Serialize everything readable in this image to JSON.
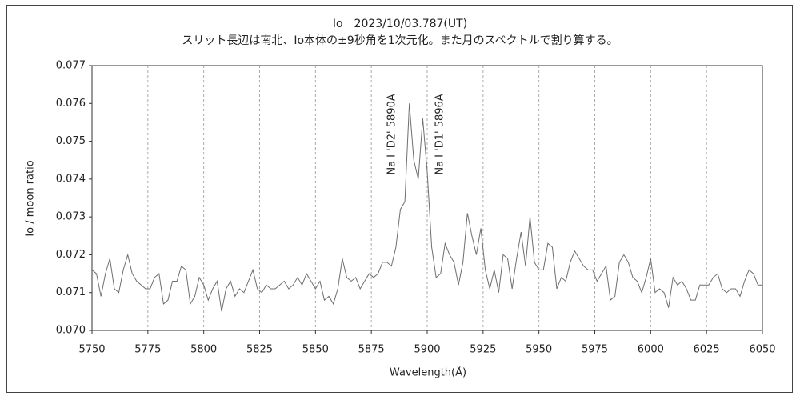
{
  "chart_data": {
    "type": "line",
    "title": "Io　2023/10/03.787(UT)",
    "subtitle": "スリット長辺は南北、Io本体の±9秒角を1次元化。また月のスペクトルで割り算する。",
    "xlabel": "Wavelength(Å)",
    "ylabel": "Io / moon ratio",
    "annotations": [
      "Na I 'D2' 5890A",
      "Na I 'D1' 5896A"
    ],
    "color": "#6e6e6e",
    "xlim": [
      5750,
      6050
    ],
    "xticks": [
      5750,
      5775,
      5800,
      5825,
      5850,
      5875,
      5900,
      5925,
      5950,
      5975,
      6000,
      6025,
      6050
    ],
    "ylim": [
      0.07,
      0.077
    ],
    "yticks": [
      {
        "value": 0.07,
        "label": "0.070"
      },
      0.071,
      0.072,
      0.073,
      0.074,
      0.075,
      0.076,
      0.077
    ],
    "grid": "x",
    "x": [
      5750,
      5752,
      5754,
      5756,
      5758,
      5760,
      5762,
      5764,
      5766,
      5768,
      5770,
      5772,
      5774,
      5776,
      5778,
      5780,
      5782,
      5784,
      5786,
      5788,
      5790,
      5792,
      5794,
      5796,
      5798,
      5800,
      5802,
      5804,
      5806,
      5808,
      5810,
      5812,
      5814,
      5816,
      5818,
      5820,
      5822,
      5824,
      5826,
      5828,
      5830,
      5832,
      5834,
      5836,
      5838,
      5840,
      5842,
      5844,
      5846,
      5848,
      5850,
      5852,
      5854,
      5856,
      5858,
      5860,
      5862,
      5864,
      5866,
      5868,
      5870,
      5872,
      5874,
      5876,
      5878,
      5880,
      5882,
      5884,
      5886,
      5888,
      5890,
      5892,
      5894,
      5896,
      5898,
      5900,
      5902,
      5904,
      5906,
      5908,
      5910,
      5912,
      5914,
      5916,
      5918,
      5920,
      5922,
      5924,
      5926,
      5928,
      5930,
      5932,
      5934,
      5936,
      5938,
      5940,
      5942,
      5944,
      5946,
      5948,
      5950,
      5952,
      5954,
      5956,
      5958,
      5960,
      5962,
      5964,
      5966,
      5968,
      5970,
      5972,
      5974,
      5976,
      5978,
      5980,
      5982,
      5984,
      5986,
      5988,
      5990,
      5992,
      5994,
      5996,
      5998,
      6000,
      6002,
      6004,
      6006,
      6008,
      6010,
      6012,
      6014,
      6016,
      6018,
      6020,
      6022,
      6024,
      6026,
      6028,
      6030,
      6032,
      6034,
      6036,
      6038,
      6040,
      6042,
      6044,
      6046,
      6048,
      6050
    ],
    "values": [
      0.0716,
      0.0715,
      0.0709,
      0.0715,
      0.0719,
      0.0711,
      0.071,
      0.0716,
      0.072,
      0.0715,
      0.0713,
      0.0712,
      0.0711,
      0.0711,
      0.0714,
      0.0715,
      0.0707,
      0.0708,
      0.0713,
      0.0713,
      0.0717,
      0.0716,
      0.0707,
      0.0709,
      0.0714,
      0.0712,
      0.0708,
      0.0711,
      0.0713,
      0.0705,
      0.0711,
      0.0713,
      0.0709,
      0.0711,
      0.071,
      0.0713,
      0.0716,
      0.0711,
      0.071,
      0.0712,
      0.0711,
      0.0711,
      0.0712,
      0.0713,
      0.0711,
      0.0712,
      0.0714,
      0.0712,
      0.0715,
      0.0713,
      0.0711,
      0.0713,
      0.0708,
      0.0709,
      0.0707,
      0.0711,
      0.0719,
      0.0714,
      0.0713,
      0.0714,
      0.0711,
      0.0713,
      0.0715,
      0.0714,
      0.0715,
      0.0718,
      0.0718,
      0.0717,
      0.0722,
      0.0732,
      0.0734,
      0.076,
      0.0745,
      0.074,
      0.0756,
      0.0742,
      0.0722,
      0.0714,
      0.0715,
      0.0723,
      0.072,
      0.0718,
      0.0712,
      0.0718,
      0.0731,
      0.0725,
      0.072,
      0.0727,
      0.0716,
      0.0711,
      0.0716,
      0.071,
      0.072,
      0.0719,
      0.0711,
      0.0719,
      0.0726,
      0.0717,
      0.073,
      0.0718,
      0.0716,
      0.0716,
      0.0723,
      0.0722,
      0.0711,
      0.0714,
      0.0713,
      0.0718,
      0.0721,
      0.0719,
      0.0717,
      0.0716,
      0.0716,
      0.0713,
      0.0715,
      0.0717,
      0.0708,
      0.0709,
      0.0718,
      0.072,
      0.0718,
      0.0714,
      0.0713,
      0.071,
      0.0714,
      0.0719,
      0.071,
      0.0711,
      0.071,
      0.0706,
      0.0714,
      0.0712,
      0.0713,
      0.0711,
      0.0708,
      0.0708,
      0.0712,
      0.0712,
      0.0712,
      0.0714,
      0.0715,
      0.0711,
      0.071,
      0.0711,
      0.0711,
      0.0709,
      0.0713,
      0.0716,
      0.0715,
      0.0712,
      0.0712
    ]
  }
}
